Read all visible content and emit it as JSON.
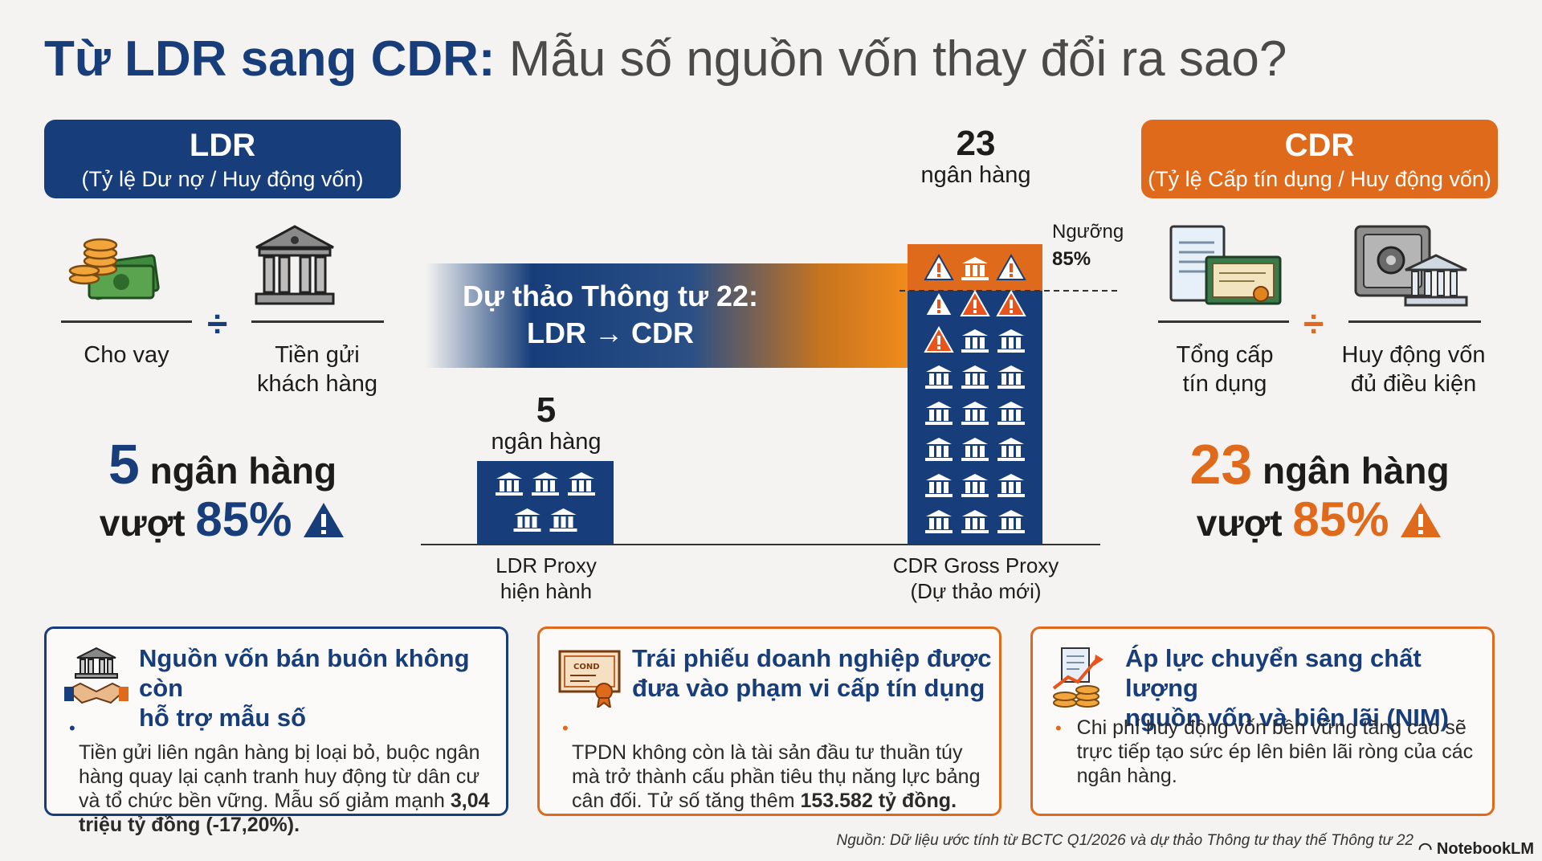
{
  "title": {
    "bold": "Từ LDR sang CDR:",
    "rest": "Mẫu số nguồn vốn thay đổi ra sao?"
  },
  "ldr": {
    "name": "LDR",
    "formula": "(Tỷ lệ Dư nợ / Huy động vốn)",
    "numerator": "Cho vay",
    "denominator_l1": "Tiền gửi",
    "denominator_l2": "khách hàng",
    "count": "5",
    "count_unit": "ngân hàng",
    "exceed_word": "vượt",
    "threshold": "85%"
  },
  "cdr": {
    "name": "CDR",
    "formula": "(Tỷ lệ Cấp tín dụng / Huy động vốn)",
    "numerator_l1": "Tổng cấp",
    "numerator_l2": "tín dụng",
    "denominator_l1": "Huy động vốn",
    "denominator_l2": "đủ điều kiện",
    "count": "23",
    "count_unit": "ngân hàng",
    "exceed_word": "vượt",
    "threshold": "85%"
  },
  "center": {
    "arrow_l1": "Dự thảo Thông tư 22:",
    "arrow_l2": "LDR → CDR",
    "bar_ldr": {
      "count": "5",
      "unit": "ngân hàng",
      "label_l1": "LDR Proxy",
      "label_l2": "hiện hành",
      "value": 5,
      "warnings": 0
    },
    "bar_cdr": {
      "count": "23",
      "unit": "ngân hàng",
      "label_l1": "CDR Gross Proxy",
      "label_l2": "(Dự thảo mới)",
      "value": 23,
      "warnings": 6
    },
    "threshold_l1": "Ngưỡng",
    "threshold_l2": "85%"
  },
  "cards": [
    {
      "title_l1": "Nguồn vốn bán buôn không còn",
      "title_l2": "hỗ trợ mẫu số",
      "body_l1": "Tiền gửi liên ngân hàng bị loại bỏ, buộc ngân",
      "body_l2": "hàng quay lại cạnh tranh huy động từ dân cư",
      "body_l3": "và tổ chức bền vững. Mẫu số giảm mạnh ",
      "body_bold1": "3,04",
      "body_bold2": "triệu tỷ đồng (-17,20%)",
      "body_end": "."
    },
    {
      "title_l1": "Trái phiếu doanh nghiệp được",
      "title_l2": "đưa vào phạm vi cấp tín dụng",
      "body_l1": "TPDN không còn là tài sản đầu tư thuần túy",
      "body_l2": "mà trở thành cấu phần tiêu thụ năng lực bảng",
      "body_l3": "cân đối. Tử số tăng thêm ",
      "body_bold1": "153.582 tỷ đồng",
      "body_end": ".",
      "icon_text": "COND"
    },
    {
      "title_l1": "Áp lực chuyển sang chất lượng",
      "title_l2": "nguồn vốn và biên lãi (NIM)",
      "body_l1": "Chi phí huy động vốn bền vững tăng cao sẽ",
      "body_l2": "trực tiếp tạo sức ép lên biên lãi ròng của các",
      "body_l3": "ngân hàng."
    }
  ],
  "source": "Nguồn: Dữ liệu ước tính từ BCTC Q1/2026 và dự thảo Thông tư thay thế Thông tư 22",
  "brand": "NotebookLM",
  "colors": {
    "navy": "#173e7a",
    "orange": "#e06a1b",
    "warning": "#e8541c"
  }
}
